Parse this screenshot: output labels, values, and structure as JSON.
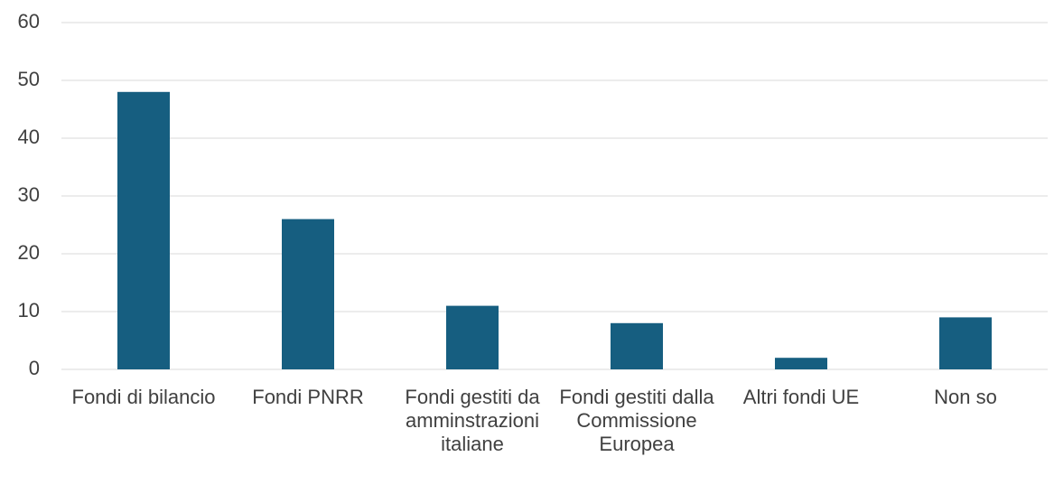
{
  "chart_data": {
    "type": "bar",
    "categories": [
      "Fondi di bilancio",
      "Fondi PNRR",
      "Fondi gestiti da amminstrazioni italiane",
      "Fondi gestiti dalla Commissione Europea",
      "Altri fondi UE",
      "Non so"
    ],
    "values": [
      48,
      26,
      11,
      8,
      2,
      9
    ],
    "color": "#165e80",
    "ylim": [
      0,
      60
    ],
    "yticks": [
      0,
      10,
      20,
      30,
      40,
      50,
      60
    ],
    "grid": true
  }
}
